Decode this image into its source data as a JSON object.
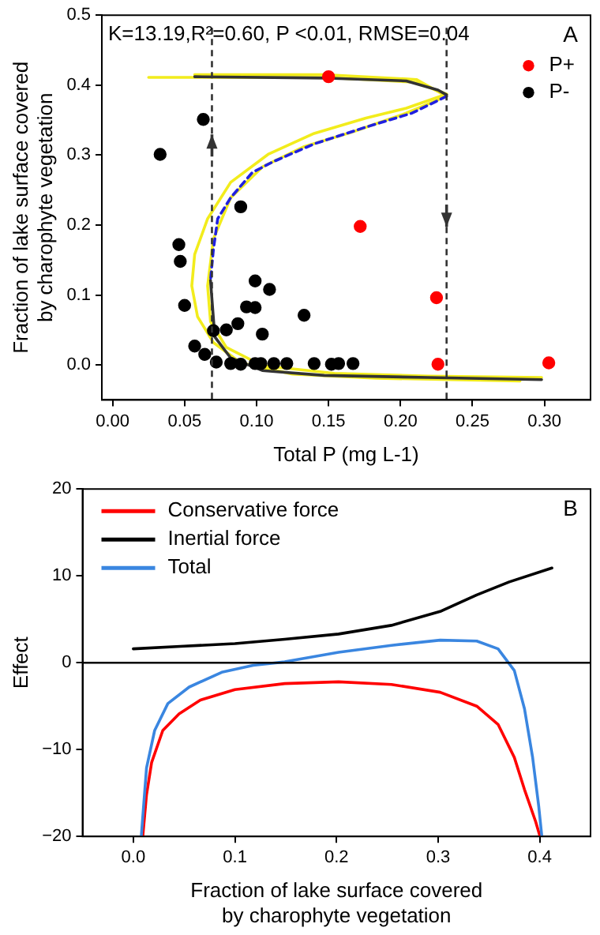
{
  "chart_data": [
    {
      "type": "scatter",
      "xlabel": "Total P (mg L-1)",
      "ylabel": "Fraction of lake surface covered\nby charophyte vegetation",
      "xlim": [
        -0.0075,
        0.332
      ],
      "xticks": [
        {
          "value": 0,
          "label": "0.00"
        },
        0.05,
        {
          "value": 0.1,
          "label": "0.10"
        },
        0.15,
        {
          "value": 0.2,
          "label": "0.20"
        },
        0.25,
        {
          "value": 0.3,
          "label": "0.30"
        }
      ],
      "ylim": [
        -0.05,
        0.5
      ],
      "yticks": [
        {
          "value": 0,
          "label": "0.0"
        },
        0.1,
        0.2,
        0.3,
        0.4,
        0.5
      ],
      "legend": "top right",
      "annotations": [
        "K=13.19,R²=0.60, P <0.01, RMSE=0.04",
        "A"
      ],
      "ref_lines": [
        {
          "axis": "x",
          "value": 0.069,
          "color": "#333333",
          "line_style": "dashed"
        },
        {
          "axis": "x",
          "value": 0.232,
          "color": "#333333",
          "line_style": "dashed"
        }
      ],
      "series": [
        {
          "name": "P+",
          "color": "#ff0000",
          "marker": "circle",
          "x": [
            0.15,
            0.172,
            0.225,
            0.226,
            0.303
          ],
          "values": [
            0.412,
            0.198,
            0.096,
            0.001,
            0.003
          ]
        },
        {
          "name": "P-",
          "color": "#000000",
          "marker": "circle",
          "x": [
            0.033,
            0.063,
            0.046,
            0.047,
            0.05,
            0.089,
            0.099,
            0.109,
            0.093,
            0.099,
            0.087,
            0.079,
            0.07,
            0.104,
            0.133,
            0.057,
            0.064,
            0.072,
            0.082,
            0.089,
            0.099,
            0.103,
            0.112,
            0.121,
            0.14,
            0.152,
            0.157,
            0.167
          ],
          "values": [
            0.301,
            0.351,
            0.172,
            0.148,
            0.085,
            0.226,
            0.12,
            0.108,
            0.083,
            0.082,
            0.059,
            0.05,
            0.049,
            0.044,
            0.071,
            0.027,
            0.015,
            0.004,
            0.002,
            0.001,
            0.002,
            0.002,
            0.002,
            0.002,
            0.002,
            0.001,
            0.002,
            0.002
          ]
        },
        {
          "type": "line",
          "marker": "none",
          "color": "#f2ec1c",
          "x": [
            0.025,
            0.147,
            0.211,
            0.232,
            0.204,
            0.176,
            0.14,
            0.108,
            0.082,
            0.066,
            0.057,
            0.055,
            0.059,
            0.07,
            0.089,
            0.125,
            0.183,
            0.283
          ],
          "values": [
            0.411,
            0.411,
            0.404,
            0.387,
            0.367,
            0.353,
            0.331,
            0.301,
            0.261,
            0.209,
            0.158,
            0.113,
            0.069,
            0.032,
            0.003,
            -0.013,
            -0.019,
            -0.023
          ]
        },
        {
          "type": "line",
          "marker": "none",
          "color": "#f2ec1c",
          "x": [
            0.057,
            0.147,
            0.211,
            0.232,
            0.204,
            0.168,
            0.133,
            0.104,
            0.082,
            0.07,
            0.066,
            0.068,
            0.079,
            0.104,
            0.154,
            0.219,
            0.298
          ],
          "values": [
            0.415,
            0.415,
            0.408,
            0.384,
            0.36,
            0.334,
            0.312,
            0.283,
            0.239,
            0.18,
            0.113,
            0.062,
            0.025,
            -0.001,
            -0.012,
            -0.016,
            -0.018
          ]
        },
        {
          "type": "line",
          "marker": "none",
          "color": "#333333",
          "x": [
            0.057,
            0.15,
            0.204,
            0.226,
            0.232,
            null,
            0.068,
            0.071,
            0.082,
            0.104,
            0.147,
            0.219,
            0.298
          ],
          "values": [
            0.412,
            0.41,
            0.406,
            0.393,
            0.386,
            null,
            0.121,
            0.04,
            0.01,
            -0.008,
            -0.015,
            -0.018,
            -0.021
          ]
        },
        {
          "type": "line",
          "marker": "none",
          "color": "#2020e0",
          "line_style": "dashed",
          "x": [
            0.232,
            0.208,
            0.176,
            0.14,
            0.111,
            0.097,
            0.082,
            0.073,
            0.07,
            0.068
          ],
          "values": [
            0.384,
            0.36,
            0.34,
            0.316,
            0.29,
            0.275,
            0.239,
            0.209,
            0.165,
            0.121
          ]
        }
      ]
    },
    {
      "type": "line",
      "xlabel": "Fraction of lake surface covered\nby charophyte vegetation",
      "ylabel": "Effect",
      "xlim": [
        -0.05,
        0.45
      ],
      "xticks": [
        {
          "value": 0,
          "label": "0.0"
        },
        0.1,
        0.2,
        0.3,
        0.4
      ],
      "ylim": [
        -20,
        20
      ],
      "yticks": [
        {
          "value": -20,
          "label": "−20"
        },
        {
          "value": -10,
          "label": "−10"
        },
        0,
        10,
        20
      ],
      "legend": "top left",
      "annotations": [
        "B"
      ],
      "ref_lines": [
        {
          "axis": "y",
          "value": 0,
          "color": "#000000",
          "line_style": "solid"
        }
      ],
      "series": [
        {
          "name": "Conservative force",
          "color": "#ff0000",
          "x": [
            0.0094,
            0.013,
            0.018,
            0.029,
            0.045,
            0.066,
            0.1,
            0.149,
            0.202,
            0.254,
            0.302,
            0.338,
            0.359,
            0.375,
            0.385,
            0.396,
            0.4
          ],
          "values": [
            -19.9,
            -15.2,
            -11.5,
            -7.8,
            -5.9,
            -4.3,
            -3.1,
            -2.4,
            -2.2,
            -2.5,
            -3.4,
            -5.0,
            -7.1,
            -10.9,
            -14.6,
            -18.3,
            -19.9
          ]
        },
        {
          "name": "Inertial force",
          "color": "#000000",
          "x": [
            0.0,
            0.05,
            0.1,
            0.149,
            0.202,
            0.254,
            0.302,
            0.338,
            0.37,
            0.412
          ],
          "values": [
            1.6,
            1.9,
            2.2,
            2.7,
            3.3,
            4.3,
            5.9,
            7.8,
            9.3,
            10.9
          ]
        },
        {
          "name": "Total",
          "color": "#3a86e0",
          "x": [
            0.0079,
            0.013,
            0.021,
            0.034,
            0.055,
            0.087,
            0.118,
            0.149,
            0.202,
            0.254,
            0.302,
            0.338,
            0.359,
            0.375,
            0.385,
            0.393,
            0.399,
            0.402
          ],
          "values": [
            -19.9,
            -12.1,
            -7.8,
            -4.7,
            -2.8,
            -1.1,
            -0.3,
            0.1,
            1.2,
            2.0,
            2.6,
            2.5,
            1.6,
            -0.9,
            -5.3,
            -10.9,
            -16.5,
            -19.9
          ]
        }
      ]
    }
  ]
}
